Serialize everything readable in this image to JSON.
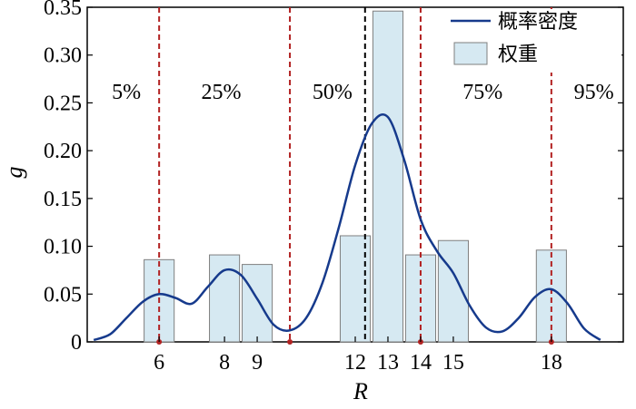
{
  "chart_data": {
    "type": "bar",
    "xlabel": "R",
    "ylabel": "g",
    "xlim": [
      3.8,
      20.2
    ],
    "ylim": [
      0,
      0.35
    ],
    "y_ticks": [
      "0",
      "0.05",
      "0.10",
      "0.15",
      "0.20",
      "0.25",
      "0.30",
      "0.35"
    ],
    "y_tick_values": [
      0,
      0.05,
      0.1,
      0.15,
      0.2,
      0.25,
      0.3,
      0.35
    ],
    "x_ticks": [
      "6",
      "8",
      "9",
      "12",
      "13",
      "14",
      "15",
      "18"
    ],
    "x_tick_values": [
      6,
      8,
      9,
      12,
      13,
      14,
      15,
      18
    ],
    "series": [
      {
        "name": "权重",
        "type": "bar",
        "x": [
          6,
          8,
          9,
          12,
          13,
          14,
          15,
          18
        ],
        "values": [
          0.086,
          0.091,
          0.081,
          0.111,
          0.346,
          0.091,
          0.106,
          0.096
        ],
        "color": "#d6e9f2",
        "edge": "#7f7f7f"
      },
      {
        "name": "概率密度",
        "type": "line",
        "x": [
          4.0,
          4.5,
          5.0,
          5.5,
          6.0,
          6.5,
          7.0,
          7.5,
          8.0,
          8.5,
          9.0,
          9.5,
          10.0,
          10.5,
          11.0,
          11.5,
          12.0,
          12.5,
          13.0,
          13.5,
          14.0,
          14.5,
          15.0,
          15.5,
          16.0,
          16.5,
          17.0,
          17.5,
          18.0,
          18.5,
          19.0,
          19.5
        ],
        "values": [
          0.002,
          0.008,
          0.025,
          0.042,
          0.05,
          0.046,
          0.04,
          0.058,
          0.075,
          0.07,
          0.045,
          0.018,
          0.012,
          0.025,
          0.062,
          0.12,
          0.185,
          0.228,
          0.235,
          0.19,
          0.128,
          0.095,
          0.072,
          0.038,
          0.015,
          0.011,
          0.025,
          0.047,
          0.055,
          0.04,
          0.014,
          0.002
        ],
        "color": "#163a8c"
      }
    ],
    "percentile_lines": [
      {
        "label": "5%",
        "x": 6,
        "color": "#b22222"
      },
      {
        "label": "25%",
        "x": 10,
        "color": "#b22222"
      },
      {
        "label": "50%",
        "x": 12.3,
        "color": "#000000"
      },
      {
        "label": "75%",
        "x": 14,
        "color": "#b22222"
      },
      {
        "label": "95%",
        "x": 18,
        "color": "#b22222"
      }
    ],
    "percentile_labels": [
      "5%",
      "25%",
      "50%",
      "75%",
      "95%"
    ],
    "legend_position": "top-right"
  }
}
